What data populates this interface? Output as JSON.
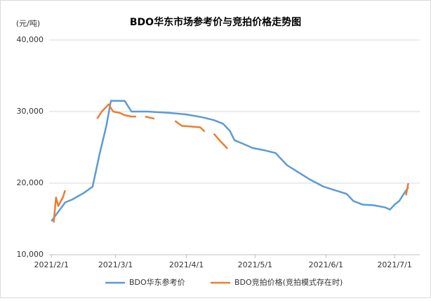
{
  "chart_data": {
    "type": "line",
    "title": "BDO华东市场参考价与竞拍价格走势图",
    "y_label": "(元/吨)",
    "xlim": [
      "2021/1/31",
      "2021/7/12"
    ],
    "xticks": [
      "2021/2/1",
      "2021/3/1",
      "2021/4/1",
      "2021/5/1",
      "2021/6/1",
      "2021/7/1"
    ],
    "ylim": [
      10000,
      40000
    ],
    "yticks": [
      {
        "value": 10000,
        "label": "10,000"
      },
      {
        "value": 20000,
        "label": "20,000"
      },
      {
        "value": 30000,
        "label": "30,000"
      },
      {
        "value": 40000,
        "label": "40,000"
      }
    ],
    "grid": true,
    "legend": "bottom",
    "series": [
      {
        "name": "BDO华东参考价",
        "color": "#5b9bd5",
        "x": [
          "2021/2/1",
          "2021/2/4",
          "2021/2/7",
          "2021/2/10",
          "2021/2/15",
          "2021/2/19",
          "2021/2/22",
          "2021/2/25",
          "2021/2/27",
          "2021/3/3",
          "2021/3/5",
          "2021/3/6",
          "2021/3/8",
          "2021/3/15",
          "2021/3/25",
          "2021/4/1",
          "2021/4/8",
          "2021/4/13",
          "2021/4/17",
          "2021/4/20",
          "2021/4/22",
          "2021/4/25",
          "2021/4/30",
          "2021/5/5",
          "2021/5/10",
          "2021/5/12",
          "2021/5/15",
          "2021/5/20",
          "2021/5/25",
          "2021/5/31",
          "2021/6/5",
          "2021/6/10",
          "2021/6/13",
          "2021/6/17",
          "2021/6/22",
          "2021/6/27",
          "2021/6/29",
          "2021/7/1",
          "2021/7/3",
          "2021/7/5",
          "2021/7/7"
        ],
        "values": [
          14700,
          16000,
          17300,
          17700,
          18600,
          19500,
          24000,
          28000,
          31500,
          31500,
          31500,
          31000,
          30000,
          30000,
          29800,
          29600,
          29200,
          28800,
          28300,
          27300,
          26000,
          25600,
          24900,
          24600,
          24200,
          23500,
          22500,
          21500,
          20500,
          19500,
          19000,
          18500,
          17500,
          17000,
          16900,
          16600,
          16300,
          17000,
          17500,
          18500,
          19400
        ]
      },
      {
        "name": "BDO竞拍价格(竞拍模式存在时)",
        "color": "#ed7d31",
        "x": [
          "2021/2/2",
          "2021/2/3",
          "2021/2/4",
          "2021/2/6",
          "2021/2/7",
          "2021/2/15",
          "2021/2/21",
          "2021/2/23",
          "2021/2/26",
          "2021/2/28",
          "2021/3/3",
          "2021/3/5",
          "2021/3/8",
          "2021/3/10",
          "2021/3/12",
          "2021/3/14",
          "2021/3/18",
          "2021/3/22",
          "2021/3/27",
          "2021/3/30",
          "2021/4/3",
          "2021/4/7",
          "2021/4/9",
          "2021/4/11",
          "2021/4/13",
          "2021/4/16",
          "2021/4/19",
          "2021/5/1",
          "2021/7/6",
          "2021/7/7"
        ],
        "values": [
          14500,
          18000,
          16800,
          18000,
          19000,
          null,
          29000,
          30000,
          31000,
          30000,
          29800,
          29500,
          29300,
          29300,
          null,
          29300,
          29000,
          null,
          28700,
          28000,
          27900,
          27800,
          27200,
          null,
          26900,
          25800,
          24800,
          null,
          18300,
          20000
        ]
      }
    ]
  }
}
